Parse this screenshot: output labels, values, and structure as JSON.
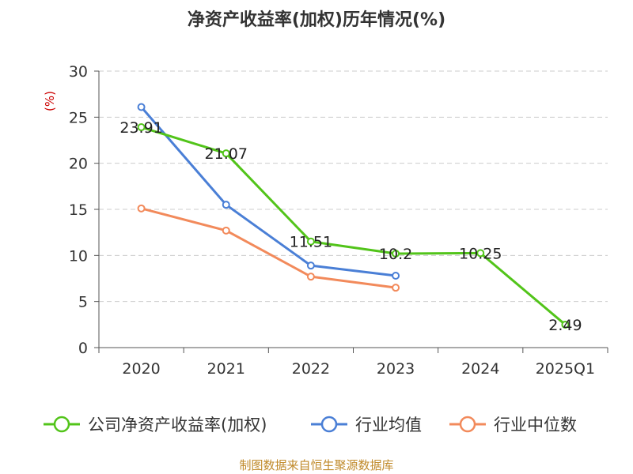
{
  "chart_data": {
    "type": "line",
    "title": "净资产收益率(加权)历年情况(%)",
    "ylabel": "(%)",
    "xlabel": "",
    "categories": [
      "2020",
      "2021",
      "2022",
      "2023",
      "2024",
      "2025Q1"
    ],
    "ylim": [
      0,
      30
    ],
    "yticks": [
      0,
      5,
      10,
      15,
      20,
      25,
      30
    ],
    "grid": "horizontal dashed",
    "legend_position": "bottom",
    "series": [
      {
        "name": "公司净资产收益率(加权)",
        "color": "#52c41a",
        "values": [
          23.91,
          21.07,
          11.51,
          10.2,
          10.25,
          2.49
        ],
        "labels": [
          "23.91",
          "21.07",
          "11.51",
          "10.2",
          "10.25",
          "2.49"
        ]
      },
      {
        "name": "行业均值",
        "color": "#4a7fd6",
        "values": [
          26.1,
          15.5,
          8.9,
          7.8,
          null,
          null
        ]
      },
      {
        "name": "行业中位数",
        "color": "#f28a5b",
        "values": [
          15.1,
          12.7,
          7.7,
          6.5,
          null,
          null
        ]
      }
    ]
  },
  "source": "制图数据来自恒生聚源数据库"
}
